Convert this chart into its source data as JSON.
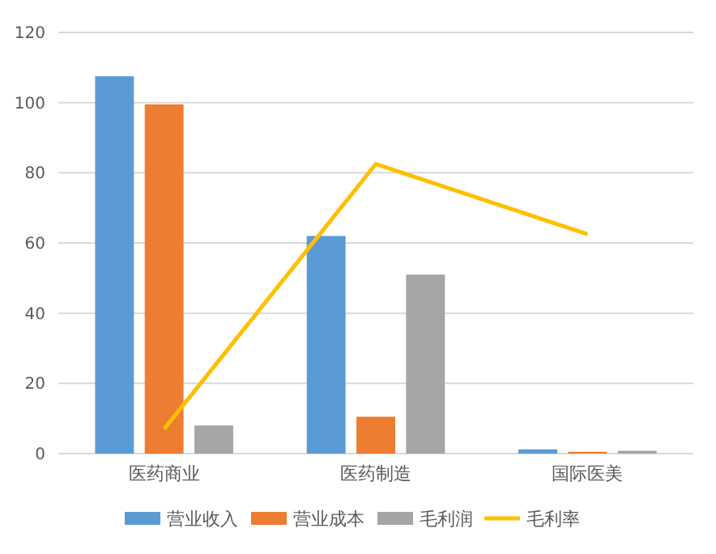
{
  "chart_data": {
    "type": "bar",
    "categories": [
      "医药商业",
      "医药制造",
      "国际医美"
    ],
    "series": [
      {
        "name": "营业收入",
        "color": "#5b9bd5",
        "values": [
          107.5,
          62,
          1.2
        ]
      },
      {
        "name": "营业成本",
        "color": "#ed7d31",
        "values": [
          99.5,
          10.5,
          0.5
        ]
      },
      {
        "name": "毛利润",
        "color": "#a5a5a5",
        "values": [
          8,
          51,
          0.8
        ]
      },
      {
        "name": "毛利率",
        "type": "line",
        "color": "#ffc000",
        "values": [
          7,
          82.5,
          62.5
        ]
      }
    ],
    "ylim": [
      0,
      120
    ],
    "yticks": [
      0,
      20,
      40,
      60,
      80,
      100,
      120
    ],
    "grid": "y",
    "legend": "bottom",
    "marker": "none"
  }
}
